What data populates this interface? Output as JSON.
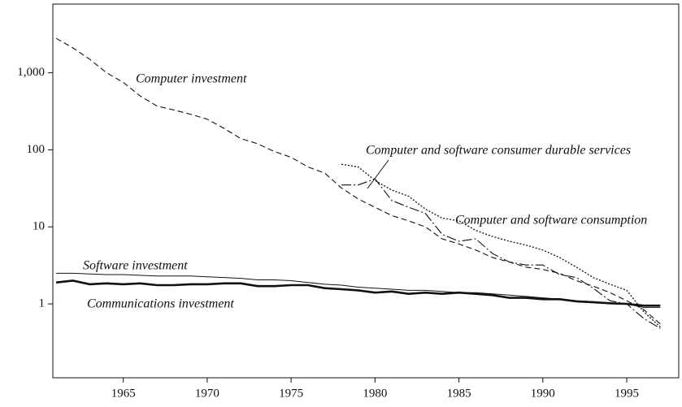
{
  "chart_data": {
    "type": "line",
    "log_y": true,
    "x": [
      1961,
      1962,
      1963,
      1964,
      1965,
      1966,
      1967,
      1968,
      1969,
      1970,
      1971,
      1972,
      1973,
      1974,
      1975,
      1976,
      1977,
      1978,
      1979,
      1980,
      1981,
      1982,
      1983,
      1984,
      1985,
      1986,
      1987,
      1988,
      1989,
      1990,
      1991,
      1992,
      1993,
      1994,
      1995,
      1996,
      1997
    ],
    "xlim": [
      1960.8,
      1998.1
    ],
    "xticks": [
      1965,
      1970,
      1975,
      1980,
      1985,
      1990,
      1995
    ],
    "ylim": [
      0.11,
      7800
    ],
    "yticks": [
      1,
      10,
      100,
      {
        "value": 1000,
        "label": "1,000"
      }
    ],
    "series": [
      {
        "name": "Computer investment",
        "color": "#111",
        "style": "dashed",
        "values": [
          2800,
          2100,
          1500,
          1000,
          750,
          500,
          370,
          330,
          290,
          250,
          190,
          140,
          120,
          95,
          80,
          60,
          50,
          32,
          23,
          18,
          14,
          12,
          10,
          7,
          6,
          5,
          4,
          3.5,
          3,
          2.8,
          2.5,
          2,
          1.7,
          1.4,
          1.1,
          0.85,
          0.55
        ]
      },
      {
        "name": "Computer and software consumer durable services",
        "color": "#111",
        "style": "dashdot",
        "values": [
          null,
          null,
          null,
          null,
          null,
          null,
          null,
          null,
          null,
          null,
          null,
          null,
          null,
          null,
          null,
          null,
          null,
          35,
          35,
          42,
          22,
          18,
          15,
          8,
          6.5,
          7,
          4.5,
          3.5,
          3.2,
          3.2,
          2.4,
          2.2,
          1.6,
          1.1,
          1.0,
          0.65,
          0.48
        ]
      },
      {
        "name": "Computer and software consumption",
        "color": "#111",
        "style": "dotted",
        "values": [
          null,
          null,
          null,
          null,
          null,
          null,
          null,
          null,
          null,
          null,
          null,
          null,
          null,
          null,
          null,
          null,
          null,
          65,
          60,
          40,
          30,
          25,
          17,
          13,
          12,
          9,
          7.5,
          6.5,
          5.8,
          5,
          4,
          3,
          2.2,
          1.8,
          1.5,
          0.8,
          0.5
        ]
      },
      {
        "name": "Software investment",
        "color": "#111",
        "style": "thin",
        "values": [
          2.5,
          2.5,
          2.45,
          2.4,
          2.4,
          2.35,
          2.3,
          2.3,
          2.3,
          2.25,
          2.2,
          2.15,
          2.05,
          2.05,
          2.0,
          1.9,
          1.8,
          1.75,
          1.65,
          1.6,
          1.55,
          1.5,
          1.5,
          1.45,
          1.4,
          1.4,
          1.35,
          1.3,
          1.25,
          1.2,
          1.15,
          1.1,
          1.07,
          1.03,
          1.0,
          0.9,
          0.9
        ]
      },
      {
        "name": "Communications investment",
        "color": "#111",
        "style": "thick",
        "values": [
          1.9,
          2.0,
          1.8,
          1.85,
          1.8,
          1.85,
          1.75,
          1.75,
          1.8,
          1.8,
          1.85,
          1.85,
          1.7,
          1.7,
          1.75,
          1.75,
          1.6,
          1.55,
          1.5,
          1.4,
          1.45,
          1.35,
          1.4,
          1.35,
          1.4,
          1.35,
          1.3,
          1.2,
          1.2,
          1.15,
          1.15,
          1.08,
          1.05,
          1.02,
          1.0,
          0.95,
          0.95
        ]
      }
    ]
  }
}
